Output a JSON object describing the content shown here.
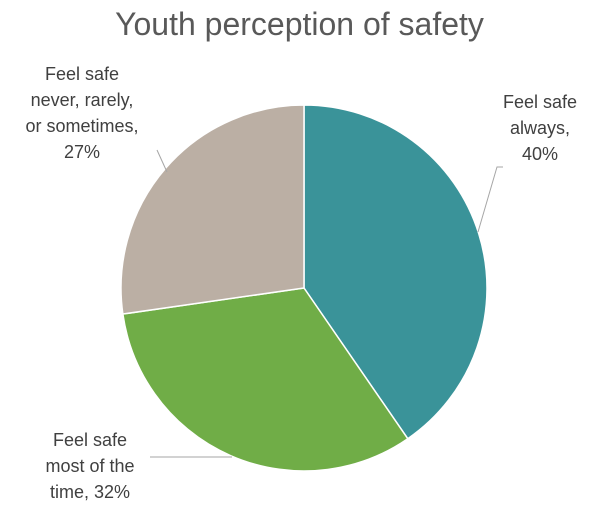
{
  "chart_data": {
    "type": "pie",
    "title": "Youth perception of safety",
    "slices": [
      {
        "label": [
          "Feel safe",
          "always,",
          "40%"
        ],
        "value": 40,
        "color": "#3a9399"
      },
      {
        "label": [
          "Feel safe",
          "most of the",
          "time, 32%"
        ],
        "value": 32,
        "color": "#70ad47"
      },
      {
        "label": [
          "Feel safe",
          "never, rarely,",
          "or sometimes,",
          "27%"
        ],
        "value": 27,
        "color": "#bbafa4"
      }
    ],
    "legend": "none"
  }
}
